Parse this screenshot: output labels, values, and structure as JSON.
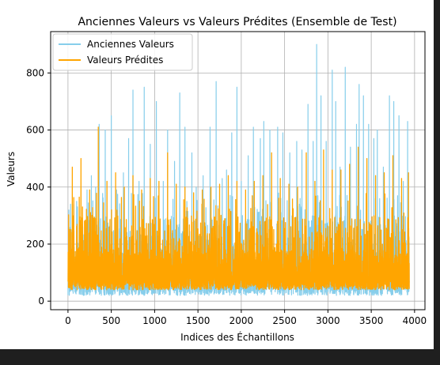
{
  "chart_data": {
    "type": "line",
    "title": "Anciennes Valeurs vs Valeurs Prédites (Ensemble de Test)",
    "xlabel": "Indices des Échantillons",
    "ylabel": "Valeurs",
    "xlim": [
      -200,
      4120
    ],
    "ylim": [
      -30,
      945
    ],
    "xticks": [
      0,
      500,
      1000,
      1500,
      2000,
      2500,
      3000,
      3500,
      4000
    ],
    "yticks": [
      0,
      200,
      400,
      600,
      800
    ],
    "grid": true,
    "legend_position": "upper-left",
    "n_points": 3940,
    "series": [
      {
        "name": "Anciennes Valeurs",
        "color": "#87ceeb",
        "range": [
          20,
          900
        ],
        "peaks": [
          [
            30,
            340
          ],
          [
            100,
            350
          ],
          [
            220,
            390
          ],
          [
            270,
            440
          ],
          [
            320,
            400
          ],
          [
            360,
            620
          ],
          [
            430,
            600
          ],
          [
            500,
            650
          ],
          [
            560,
            390
          ],
          [
            640,
            450
          ],
          [
            700,
            570
          ],
          [
            750,
            740
          ],
          [
            820,
            420
          ],
          [
            880,
            750
          ],
          [
            950,
            550
          ],
          [
            1020,
            700
          ],
          [
            1100,
            420
          ],
          [
            1150,
            600
          ],
          [
            1230,
            490
          ],
          [
            1290,
            730
          ],
          [
            1350,
            610
          ],
          [
            1430,
            520
          ],
          [
            1480,
            400
          ],
          [
            1560,
            440
          ],
          [
            1640,
            610
          ],
          [
            1710,
            770
          ],
          [
            1780,
            430
          ],
          [
            1830,
            460
          ],
          [
            1890,
            590
          ],
          [
            1950,
            750
          ],
          [
            2000,
            420
          ],
          [
            2080,
            510
          ],
          [
            2140,
            610
          ],
          [
            2220,
            570
          ],
          [
            2260,
            630
          ],
          [
            2330,
            600
          ],
          [
            2420,
            610
          ],
          [
            2480,
            590
          ],
          [
            2560,
            520
          ],
          [
            2640,
            560
          ],
          [
            2700,
            530
          ],
          [
            2770,
            690
          ],
          [
            2830,
            560
          ],
          [
            2870,
            900
          ],
          [
            2920,
            720
          ],
          [
            2980,
            560
          ],
          [
            3050,
            810
          ],
          [
            3090,
            700
          ],
          [
            3140,
            470
          ],
          [
            3200,
            820
          ],
          [
            3260,
            540
          ],
          [
            3330,
            620
          ],
          [
            3360,
            760
          ],
          [
            3410,
            720
          ],
          [
            3470,
            620
          ],
          [
            3530,
            570
          ],
          [
            3570,
            600
          ],
          [
            3640,
            470
          ],
          [
            3710,
            720
          ],
          [
            3760,
            700
          ],
          [
            3820,
            650
          ],
          [
            3870,
            420
          ],
          [
            3920,
            630
          ]
        ]
      },
      {
        "name": "Valeurs Prédites",
        "color": "#ffa500",
        "range": [
          40,
          610
        ],
        "peaks": [
          [
            50,
            470
          ],
          [
            150,
            500
          ],
          [
            250,
            390
          ],
          [
            350,
            610
          ],
          [
            450,
            420
          ],
          [
            550,
            450
          ],
          [
            650,
            400
          ],
          [
            750,
            440
          ],
          [
            850,
            390
          ],
          [
            950,
            430
          ],
          [
            1050,
            420
          ],
          [
            1150,
            520
          ],
          [
            1250,
            410
          ],
          [
            1350,
            400
          ],
          [
            1450,
            380
          ],
          [
            1550,
            390
          ],
          [
            1650,
            400
          ],
          [
            1750,
            410
          ],
          [
            1850,
            440
          ],
          [
            1950,
            420
          ],
          [
            2050,
            390
          ],
          [
            2150,
            420
          ],
          [
            2250,
            440
          ],
          [
            2350,
            520
          ],
          [
            2450,
            430
          ],
          [
            2550,
            410
          ],
          [
            2650,
            400
          ],
          [
            2750,
            520
          ],
          [
            2850,
            420
          ],
          [
            2950,
            530
          ],
          [
            3050,
            460
          ],
          [
            3150,
            460
          ],
          [
            3250,
            480
          ],
          [
            3350,
            540
          ],
          [
            3450,
            500
          ],
          [
            3550,
            440
          ],
          [
            3650,
            450
          ],
          [
            3750,
            510
          ],
          [
            3850,
            430
          ],
          [
            3930,
            450
          ]
        ]
      }
    ]
  }
}
